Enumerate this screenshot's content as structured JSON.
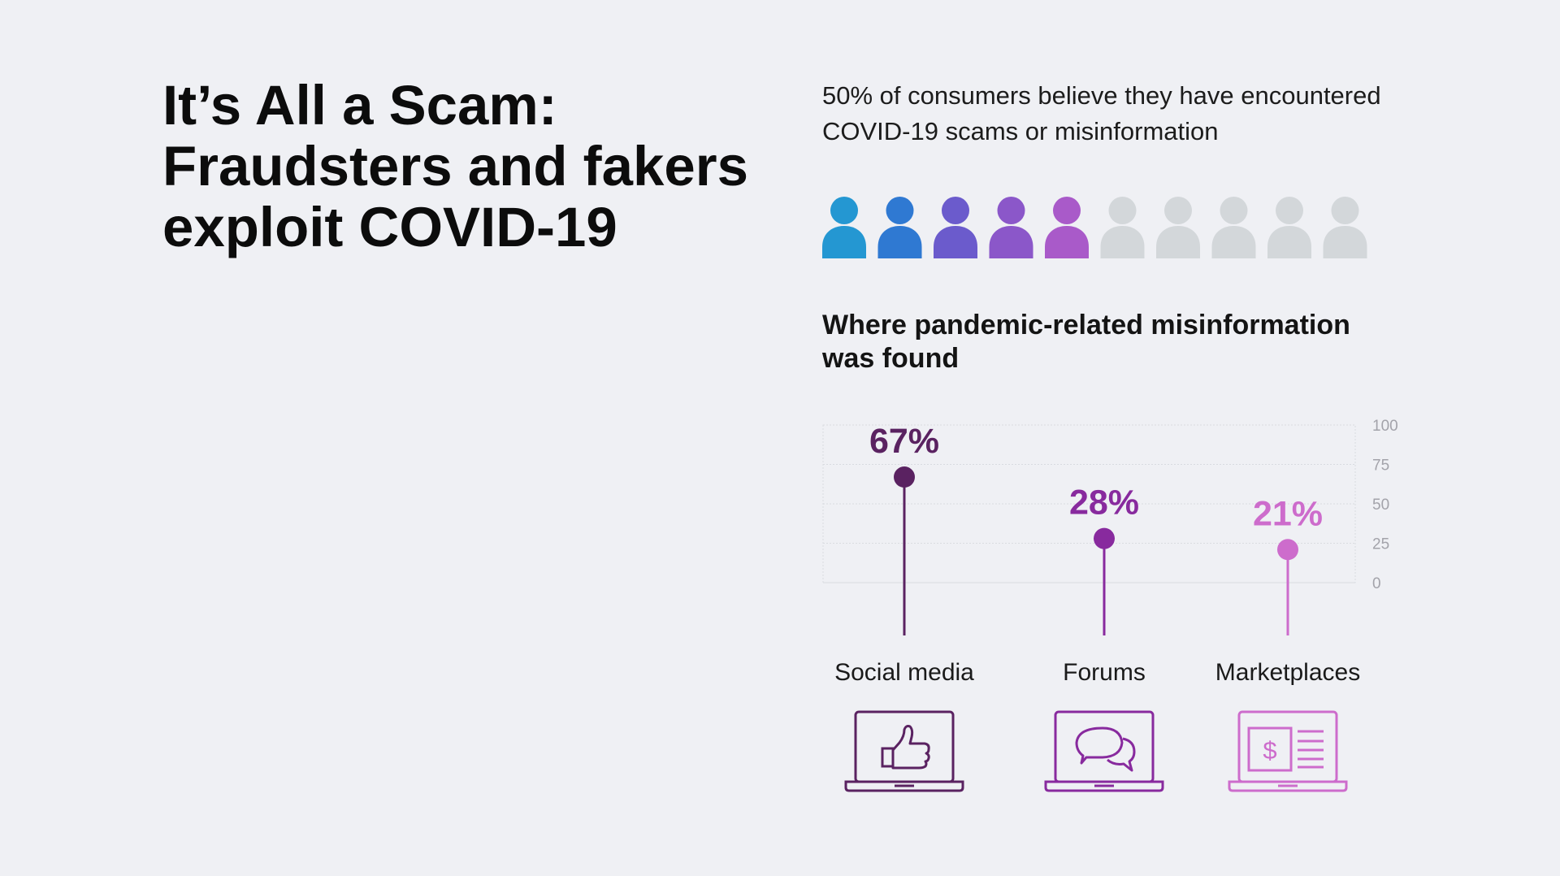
{
  "page": {
    "title_lines": [
      "It’s All a Scam:",
      "Fraudsters and fakers",
      "exploit COVID-19"
    ],
    "intro_lines": [
      "50% of consumers believe they have encountered",
      "COVID-19 scams or misinformation"
    ]
  },
  "people_stat": {
    "filled": 5,
    "total": 10,
    "filled_colors": [
      "#2497d2",
      "#2f79d2",
      "#6b5bcc",
      "#8b57c9",
      "#a95ac9"
    ],
    "empty_color": "#d3d7da"
  },
  "chart_data": {
    "type": "lollipop",
    "title_lines": [
      "Where pandemic-related misinformation",
      "was found"
    ],
    "categories": [
      "Social media",
      "Forums",
      "Marketplaces"
    ],
    "values": [
      67,
      28,
      21
    ],
    "value_labels": [
      "67%",
      "28%",
      "21%"
    ],
    "colors": [
      "#5a2261",
      "#882a9e",
      "#cd6ccc"
    ],
    "ylim": [
      0,
      100
    ],
    "yticks": [
      0,
      25,
      50,
      75,
      100
    ],
    "grid": true,
    "icons": [
      "laptop-thumbs-up-icon",
      "laptop-chat-bubbles-icon",
      "laptop-dollar-listing-icon"
    ]
  }
}
